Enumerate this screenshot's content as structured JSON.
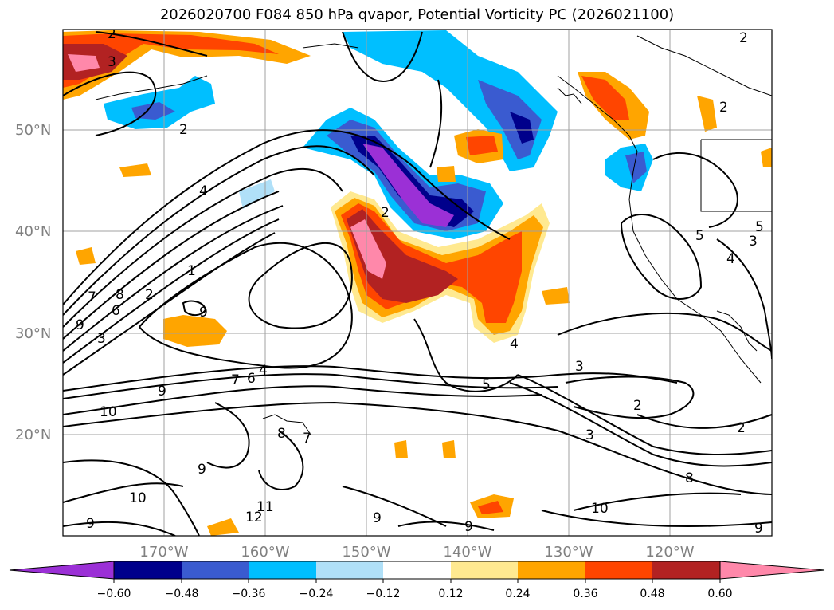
{
  "title": "2026020700 F084 850 hPa qvapor, Potential Vorticity PC (2026021100)",
  "lat_labels": [
    "50°N",
    "40°N",
    "30°N",
    "20°N"
  ],
  "lon_labels": [
    "170°W",
    "160°W",
    "150°W",
    "140°W",
    "130°W",
    "120°W"
  ],
  "contour_labels": [
    "2",
    "3",
    "2",
    "4",
    "1",
    "8",
    "7",
    "6",
    "9",
    "3",
    "2",
    "6",
    "7",
    "4",
    "9",
    "10",
    "8",
    "9",
    "10",
    "9",
    "11",
    "12",
    "9",
    "9",
    "5",
    "3",
    "2",
    "2",
    "4",
    "3",
    "3",
    "5",
    "5",
    "4",
    "2",
    "2",
    "8",
    "10",
    "9",
    "2",
    "9",
    "7"
  ],
  "colorbar": {
    "ticks": [
      "−0.60",
      "−0.48",
      "−0.36",
      "−0.24",
      "−0.12",
      "0.12",
      "0.24",
      "0.36",
      "0.48",
      "0.60"
    ],
    "colors": [
      "#9b30d6",
      "#00008b",
      "#3a5bd0",
      "#00bfff",
      "#b0e0f8",
      "#ffffff",
      "#ffe990",
      "#ffa500",
      "#ff4500",
      "#b22222",
      "#ff88aa"
    ]
  }
}
